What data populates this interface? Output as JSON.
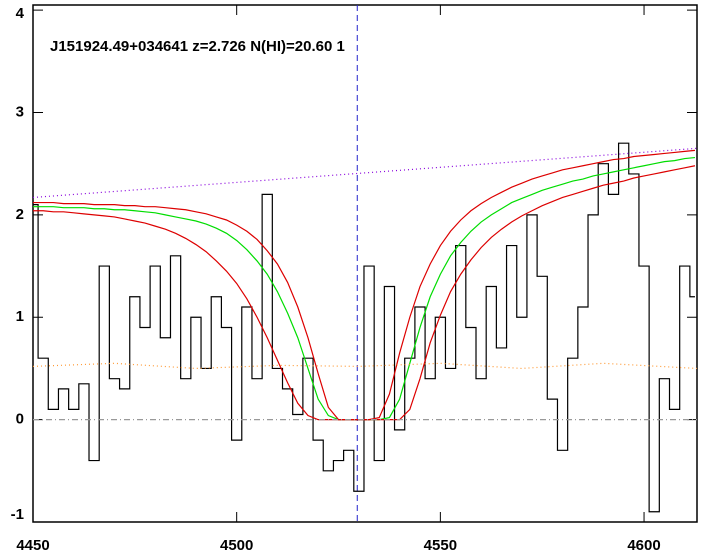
{
  "chart_data": {
    "type": "line",
    "title": "J151924.49+034641 z=2.726 N(HI)=20.60 1",
    "xlim": [
      4450,
      4613
    ],
    "ylim": [
      -1,
      4.05
    ],
    "xticks": [
      4450,
      4500,
      4550,
      4600
    ],
    "yticks": [
      -1,
      0,
      1,
      2,
      3,
      4
    ],
    "vline": {
      "x": 4529.6,
      "color": "#2222cc"
    },
    "x": [
      4450,
      4452.5,
      4455,
      4457.5,
      4460,
      4462.5,
      4465,
      4467.5,
      4470,
      4472.5,
      4475,
      4477.5,
      4480,
      4482.5,
      4485,
      4487.5,
      4490,
      4492.5,
      4495,
      4497.5,
      4500,
      4502.5,
      4505,
      4507.5,
      4510,
      4512.5,
      4515,
      4517.5,
      4520,
      4522.5,
      4525,
      4527.5,
      4530,
      4532.5,
      4535,
      4537.5,
      4540,
      4542.5,
      4545,
      4547.5,
      4550,
      4552.5,
      4555,
      4557.5,
      4560,
      4562.5,
      4565,
      4567.5,
      4570,
      4572.5,
      4575,
      4577.5,
      4580,
      4582.5,
      4585,
      4587.5,
      4590,
      4592.5,
      4595,
      4597.5,
      4600,
      4602.5,
      4605,
      4607.5,
      4610,
      4612.5
    ],
    "series": [
      {
        "color": "#000000",
        "step": true,
        "values": [
          2.1,
          0.6,
          0.1,
          0.3,
          0.1,
          0.35,
          -0.4,
          1.5,
          0.4,
          0.3,
          1.2,
          0.9,
          1.5,
          0.8,
          1.6,
          0.4,
          1.0,
          0.5,
          1.2,
          0.9,
          -0.2,
          1.1,
          0.4,
          2.2,
          0.5,
          0.3,
          0.05,
          0.6,
          -0.2,
          -0.5,
          -0.4,
          -0.3,
          -0.7,
          1.5,
          -0.4,
          1.3,
          -0.1,
          0.6,
          1.1,
          0.4,
          1.0,
          0.5,
          1.7,
          0.9,
          0.4,
          1.3,
          0.7,
          1.7,
          1.0,
          2.0,
          1.4,
          0.2,
          -0.3,
          0.6,
          1.1,
          2.0,
          2.5,
          2.2,
          2.7,
          2.4,
          1.5,
          -0.9,
          0.4,
          0.1,
          1.5,
          1.2
        ]
      },
      {
        "color": "#00dd00",
        "values": [
          2.08,
          2.08,
          2.08,
          2.07,
          2.07,
          2.07,
          2.06,
          2.06,
          2.05,
          2.05,
          2.04,
          2.03,
          2.02,
          2.0,
          1.98,
          1.96,
          1.94,
          1.91,
          1.87,
          1.82,
          1.75,
          1.66,
          1.55,
          1.42,
          1.25,
          1.04,
          0.8,
          0.5,
          0.2,
          0.04,
          0,
          0,
          0,
          0,
          0,
          0.02,
          0.2,
          0.55,
          0.9,
          1.2,
          1.42,
          1.6,
          1.73,
          1.84,
          1.93,
          2.0,
          2.06,
          2.12,
          2.16,
          2.2,
          2.24,
          2.27,
          2.3,
          2.33,
          2.35,
          2.38,
          2.4,
          2.42,
          2.44,
          2.46,
          2.48,
          2.5,
          2.52,
          2.53,
          2.55,
          2.56
        ]
      },
      {
        "color": "#dd0000",
        "values": [
          2.12,
          2.12,
          2.12,
          2.11,
          2.11,
          2.11,
          2.1,
          2.1,
          2.1,
          2.09,
          2.09,
          2.08,
          2.08,
          2.07,
          2.06,
          2.05,
          2.03,
          2.01,
          1.98,
          1.95,
          1.9,
          1.84,
          1.76,
          1.65,
          1.52,
          1.34,
          1.1,
          0.8,
          0.45,
          0.12,
          0,
          0,
          0,
          0,
          0.02,
          0.25,
          0.65,
          1.0,
          1.3,
          1.52,
          1.7,
          1.84,
          1.95,
          2.04,
          2.11,
          2.17,
          2.22,
          2.27,
          2.31,
          2.35,
          2.38,
          2.41,
          2.44,
          2.46,
          2.48,
          2.5,
          2.52,
          2.54,
          2.55,
          2.57,
          2.58,
          2.59,
          2.6,
          2.61,
          2.62,
          2.63
        ]
      },
      {
        "color": "#dd0000",
        "values": [
          2.04,
          2.04,
          2.03,
          2.03,
          2.02,
          2.01,
          2.0,
          1.99,
          1.98,
          1.96,
          1.94,
          1.92,
          1.89,
          1.86,
          1.82,
          1.77,
          1.71,
          1.64,
          1.55,
          1.45,
          1.33,
          1.18,
          1.0,
          0.8,
          0.58,
          0.36,
          0.16,
          0.04,
          0,
          0,
          0,
          0,
          0,
          0,
          0,
          0,
          0,
          0.1,
          0.4,
          0.75,
          1.02,
          1.25,
          1.42,
          1.56,
          1.68,
          1.78,
          1.86,
          1.93,
          1.99,
          2.04,
          2.09,
          2.13,
          2.17,
          2.2,
          2.23,
          2.26,
          2.29,
          2.31,
          2.33,
          2.36,
          2.38,
          2.4,
          2.42,
          2.44,
          2.46,
          2.48
        ]
      },
      {
        "color": "#8800dd",
        "dash": "1,3",
        "x": [
          4450,
          4613
        ],
        "values": [
          2.17,
          2.65
        ]
      },
      {
        "color": "#ff9933",
        "dash": "1,3",
        "x": [
          4450,
          4470,
          4490,
          4510,
          4530,
          4550,
          4570,
          4590,
          4613
        ],
        "values": [
          0.52,
          0.55,
          0.5,
          0.53,
          0.52,
          0.55,
          0.5,
          0.55,
          0.5
        ]
      },
      {
        "color": "#999999",
        "dash": "6,3,1,3",
        "x": [
          4450,
          4613
        ],
        "values": [
          0,
          0
        ]
      }
    ]
  }
}
